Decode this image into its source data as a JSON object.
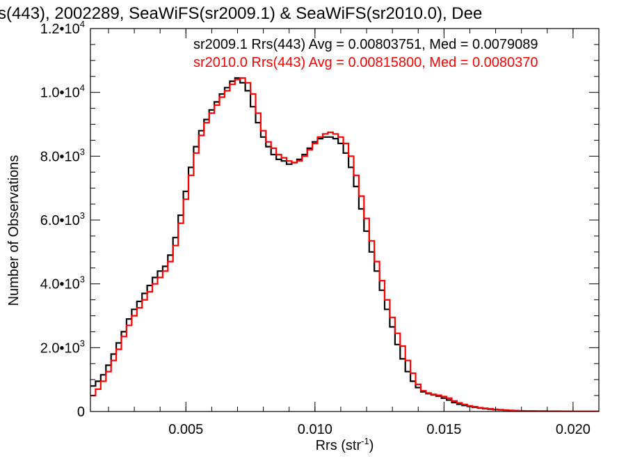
{
  "page": {
    "title": "s(443), 2002289, SeaWiFS(sr2009.1) & SeaWiFS(sr2010.0), Dee"
  },
  "chart_data": {
    "type": "line",
    "step": true,
    "title": "s(443), 2002289, SeaWiFS(sr2009.1) & SeaWiFS(sr2010.0), Dee",
    "xlabel": "Rrs (str",
    "xlabel_superscript": "-1",
    "xlabel_suffix": ")",
    "ylabel": "Number of Observations",
    "xlim": [
      0.0013,
      0.021
    ],
    "ylim": [
      0,
      12000
    ],
    "x_ticks": [
      {
        "value": 0.005,
        "label": "0.005"
      },
      {
        "value": 0.01,
        "label": "0.010"
      },
      {
        "value": 0.015,
        "label": "0.015"
      },
      {
        "value": 0.02,
        "label": "0.020"
      }
    ],
    "y_ticks": [
      {
        "value": 0,
        "mantissa": "0",
        "exponent": ""
      },
      {
        "value": 2000,
        "mantissa": "2.0•10",
        "exponent": "3"
      },
      {
        "value": 4000,
        "mantissa": "4.0•10",
        "exponent": "3"
      },
      {
        "value": 6000,
        "mantissa": "6.0•10",
        "exponent": "3"
      },
      {
        "value": 8000,
        "mantissa": "8.0•10",
        "exponent": "3"
      },
      {
        "value": 10000,
        "mantissa": "1.0•10",
        "exponent": "4"
      },
      {
        "value": 12000,
        "mantissa": "1.2•10",
        "exponent": "4"
      }
    ],
    "grid": false,
    "legend_position": "top-right",
    "series": [
      {
        "name": "sr2009.1 Rrs(443) Avg = 0.00803751, Med = 0.0079089",
        "color": "#000000",
        "x": [
          0.0013,
          0.0015,
          0.0017,
          0.0019,
          0.0021,
          0.0023,
          0.0025,
          0.0027,
          0.0029,
          0.0031,
          0.0033,
          0.0035,
          0.0037,
          0.0039,
          0.0041,
          0.0043,
          0.0045,
          0.0047,
          0.0049,
          0.0051,
          0.0053,
          0.0055,
          0.0057,
          0.0059,
          0.0061,
          0.0063,
          0.0065,
          0.0067,
          0.0069,
          0.0071,
          0.0073,
          0.0075,
          0.0077,
          0.0079,
          0.0081,
          0.0083,
          0.0085,
          0.0087,
          0.0089,
          0.0091,
          0.0093,
          0.0095,
          0.0097,
          0.0099,
          0.0101,
          0.0103,
          0.0105,
          0.0107,
          0.0109,
          0.0111,
          0.0113,
          0.0115,
          0.0117,
          0.0119,
          0.0121,
          0.0123,
          0.0125,
          0.0127,
          0.0129,
          0.0131,
          0.0133,
          0.0135,
          0.0137,
          0.0139,
          0.0141,
          0.0143,
          0.0145,
          0.0147,
          0.0149,
          0.0151,
          0.0153,
          0.0155,
          0.0157,
          0.0159,
          0.0161,
          0.0163,
          0.0165,
          0.0167,
          0.0169,
          0.0171,
          0.0173,
          0.0175,
          0.0177,
          0.0179,
          0.0181,
          0.0185,
          0.019,
          0.0195,
          0.02,
          0.0205,
          0.021
        ],
        "y": [
          800,
          950,
          1150,
          1450,
          1800,
          2150,
          2500,
          2900,
          3200,
          3450,
          3700,
          3950,
          4200,
          4400,
          4550,
          4900,
          5450,
          6150,
          6900,
          7650,
          8300,
          8800,
          9150,
          9450,
          9700,
          9950,
          10150,
          10350,
          10450,
          10300,
          10050,
          9550,
          9050,
          8600,
          8300,
          8050,
          7900,
          7850,
          7750,
          7800,
          7900,
          8050,
          8250,
          8450,
          8550,
          8600,
          8600,
          8550,
          8400,
          8100,
          7650,
          7050,
          6350,
          5650,
          5000,
          4400,
          3800,
          3200,
          2650,
          2100,
          1650,
          1250,
          950,
          750,
          620,
          560,
          520,
          480,
          420,
          360,
          280,
          230,
          190,
          160,
          130,
          110,
          90,
          75,
          60,
          50,
          40,
          30,
          24,
          20,
          16,
          12,
          9,
          6,
          4,
          3,
          2
        ]
      },
      {
        "name": "sr2010.0 Rrs(443) Avg = 0.00815800, Med = 0.0080370",
        "color": "#ff0000",
        "x": [
          0.0013,
          0.0015,
          0.0017,
          0.0019,
          0.0021,
          0.0023,
          0.0025,
          0.0027,
          0.0029,
          0.0031,
          0.0033,
          0.0035,
          0.0037,
          0.0039,
          0.0041,
          0.0043,
          0.0045,
          0.0047,
          0.0049,
          0.0051,
          0.0053,
          0.0055,
          0.0057,
          0.0059,
          0.0061,
          0.0063,
          0.0065,
          0.0067,
          0.0069,
          0.0071,
          0.0073,
          0.0075,
          0.0077,
          0.0079,
          0.0081,
          0.0083,
          0.0085,
          0.0087,
          0.0089,
          0.0091,
          0.0093,
          0.0095,
          0.0097,
          0.0099,
          0.0101,
          0.0103,
          0.0105,
          0.0107,
          0.0109,
          0.0111,
          0.0113,
          0.0115,
          0.0117,
          0.0119,
          0.0121,
          0.0123,
          0.0125,
          0.0127,
          0.0129,
          0.0131,
          0.0133,
          0.0135,
          0.0137,
          0.0139,
          0.0141,
          0.0143,
          0.0145,
          0.0147,
          0.0149,
          0.0151,
          0.0153,
          0.0155,
          0.0157,
          0.0159,
          0.0161,
          0.0163,
          0.0165,
          0.0167,
          0.0169,
          0.0171,
          0.0173,
          0.0175,
          0.0177,
          0.0179,
          0.0181,
          0.0185,
          0.019,
          0.0195,
          0.02,
          0.0205,
          0.021
        ],
        "y": [
          500,
          700,
          950,
          1250,
          1600,
          1950,
          2350,
          2700,
          3000,
          3250,
          3500,
          3750,
          4000,
          4200,
          4400,
          4700,
          5200,
          5900,
          6650,
          7400,
          8100,
          8650,
          9050,
          9350,
          9600,
          9850,
          10050,
          10250,
          10400,
          10450,
          10300,
          9950,
          9350,
          8800,
          8450,
          8250,
          8050,
          7950,
          7850,
          7800,
          7850,
          8000,
          8200,
          8400,
          8600,
          8700,
          8750,
          8700,
          8600,
          8400,
          8000,
          7400,
          6750,
          6050,
          5350,
          4700,
          4100,
          3500,
          2950,
          2450,
          2050,
          1600,
          1200,
          850,
          650,
          580,
          540,
          510,
          470,
          420,
          330,
          270,
          220,
          180,
          150,
          120,
          100,
          85,
          70,
          58,
          46,
          36,
          28,
          22,
          17,
          13,
          10,
          7,
          5,
          3,
          2
        ]
      }
    ]
  }
}
